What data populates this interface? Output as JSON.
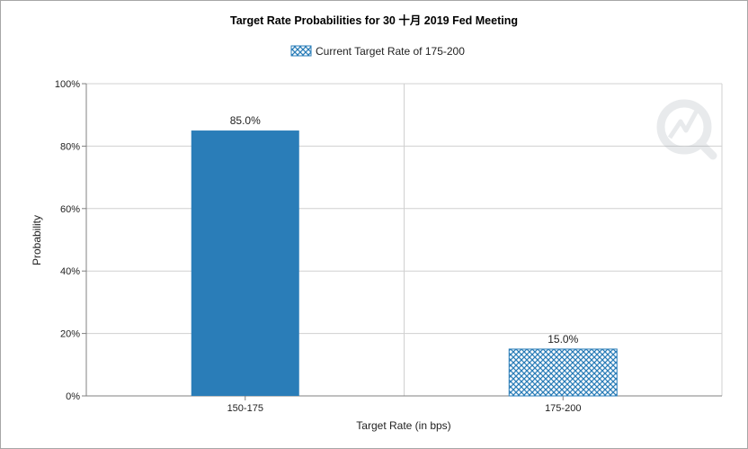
{
  "chart_data": {
    "type": "bar",
    "title": "Target Rate Probabilities for 30 十月 2019 Fed Meeting",
    "xlabel": "Target Rate (in bps)",
    "ylabel": "Probability",
    "categories": [
      "150-175",
      "175-200"
    ],
    "values": [
      85.0,
      15.0
    ],
    "data_labels": [
      "85.0%",
      "15.0%"
    ],
    "ylim": [
      0,
      100
    ],
    "yticks": [
      0,
      20,
      40,
      60,
      80,
      100
    ],
    "ytick_labels": [
      "0%",
      "20%",
      "40%",
      "60%",
      "80%",
      "100%"
    ],
    "legend": [
      {
        "label": "Current Target Rate of 175-200",
        "category": "175-200",
        "pattern": "crosshatch"
      }
    ],
    "legend_position": "top-center",
    "grid": true,
    "colors": {
      "bar": "#2a7db8",
      "hatch_line": "#2a7db8",
      "hatch_bg": "#ffffff",
      "grid": "#d0d0d0",
      "axis": "#808080"
    },
    "highlighted_category": "175-200"
  }
}
